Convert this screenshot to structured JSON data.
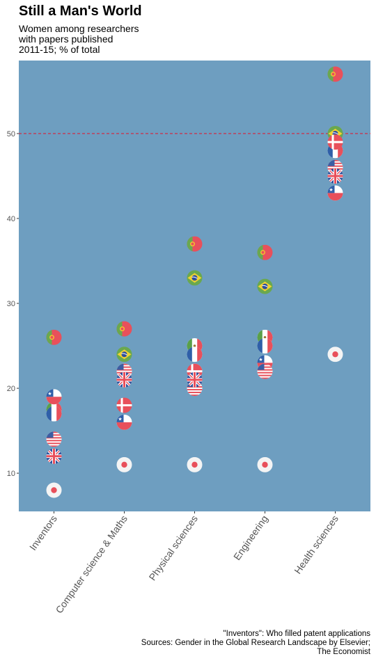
{
  "title": "Still a Man's World",
  "subtitle_lines": [
    "Women among researchers",
    "with papers published",
    "2011-15; % of total"
  ],
  "source_lines": [
    "\"Inventors\": Who filled patent applications",
    "Sources: Gender in the Global Research Landscape by Elsevier;",
    "The Economist"
  ],
  "colors": {
    "panel": "#6e9ec0",
    "reference_line": "#d6213a",
    "axis_text": "#555555"
  },
  "chart_data": {
    "type": "scatter",
    "categories": [
      "Inventors",
      "Computer science & Maths",
      "Physical sciences",
      "Engineering",
      "Health sciences"
    ],
    "y_ticks": [
      10,
      20,
      30,
      40,
      50
    ],
    "ylim": [
      5.5,
      58.6
    ],
    "grid": false,
    "reference_line": 50,
    "series": [
      {
        "name": "Portugal",
        "icon": "portugal-flag",
        "values": [
          26,
          27,
          37,
          36,
          57
        ]
      },
      {
        "name": "Brazil",
        "icon": "brazil-flag",
        "values": [
          null,
          24,
          33,
          32,
          50
        ]
      },
      {
        "name": "Mexico",
        "icon": "mexico-flag",
        "values": [
          17.5,
          null,
          25,
          26,
          null
        ]
      },
      {
        "name": "France",
        "icon": "france-flag",
        "values": [
          17,
          22,
          24,
          25,
          48
        ]
      },
      {
        "name": "Chile",
        "icon": "chile-flag",
        "values": [
          19,
          16,
          22,
          23,
          43
        ]
      },
      {
        "name": "Denmark",
        "icon": "denmark-flag",
        "values": [
          null,
          18,
          22,
          22,
          49
        ]
      },
      {
        "name": "United States",
        "icon": "usa-flag",
        "values": [
          14,
          22,
          20,
          22,
          46
        ]
      },
      {
        "name": "United Kingdom",
        "icon": "uk-flag",
        "values": [
          12,
          21,
          21,
          null,
          45
        ]
      },
      {
        "name": "Japan",
        "icon": "japan-flag",
        "values": [
          8,
          11,
          11,
          11,
          24
        ]
      }
    ]
  }
}
